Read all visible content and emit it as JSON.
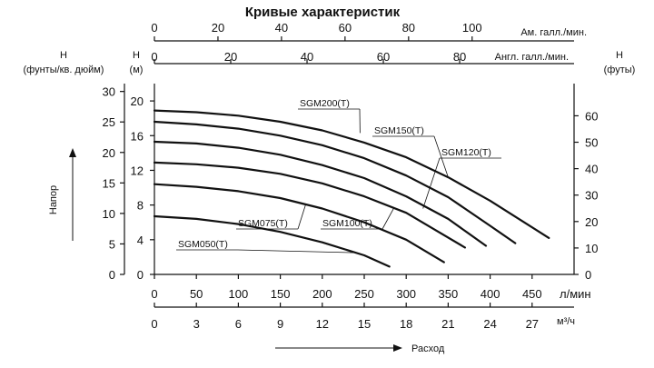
{
  "chart_data": {
    "type": "line",
    "title": "Кривые характеристик",
    "axes": {
      "x_main": {
        "label": "л/мин",
        "range": [
          0,
          500
        ],
        "ticks": [
          0,
          50,
          100,
          150,
          200,
          250,
          300,
          350,
          400,
          450
        ]
      },
      "x_m3h": {
        "label": "м³/ч",
        "range": [
          0,
          30
        ],
        "ticks": [
          0,
          3,
          6,
          9,
          12,
          15,
          18,
          21,
          24,
          27
        ]
      },
      "x_usgpm": {
        "label": "Ам. галл./мин.",
        "range": [
          0,
          132.1
        ],
        "ticks": [
          0,
          20,
          40,
          60,
          80,
          100
        ]
      },
      "x_ukgpm": {
        "label": "Англ. галл./мин.",
        "range": [
          0,
          110
        ],
        "ticks": [
          0,
          20,
          40,
          60,
          80
        ]
      },
      "y_m": {
        "label_top": "H",
        "label_unit": "(м)",
        "range": [
          0,
          22
        ],
        "ticks": [
          0,
          4,
          8,
          12,
          16,
          20
        ]
      },
      "y_psi": {
        "label_top": "H",
        "label_unit": "(фунты/кв. дюйм)",
        "range": [
          0,
          31.3
        ],
        "ticks": [
          0,
          5,
          10,
          15,
          20,
          25,
          30
        ]
      },
      "y_ft": {
        "label_top": "H",
        "label_unit": "(футы)",
        "range": [
          0,
          72.2
        ],
        "ticks": [
          0,
          10,
          20,
          30,
          40,
          50,
          60
        ]
      },
      "y_side_label": "Напор",
      "x_bottom_label": "Расход"
    },
    "series": [
      {
        "name": "SGM200(T)",
        "x": [
          0,
          50,
          100,
          150,
          200,
          250,
          300,
          350,
          400,
          470
        ],
        "y": [
          18.9,
          18.7,
          18.3,
          17.6,
          16.6,
          15.2,
          13.5,
          11.2,
          8.5,
          4.2
        ]
      },
      {
        "name": "SGM150(T)",
        "x": [
          0,
          50,
          100,
          150,
          200,
          250,
          300,
          350,
          400,
          430
        ],
        "y": [
          17.6,
          17.3,
          16.8,
          16.0,
          14.9,
          13.4,
          11.4,
          8.9,
          5.6,
          3.6
        ]
      },
      {
        "name": "SGM120(T)",
        "x": [
          0,
          50,
          100,
          150,
          200,
          250,
          300,
          350,
          395
        ],
        "y": [
          15.3,
          15.1,
          14.6,
          13.8,
          12.6,
          11.1,
          9.0,
          6.4,
          3.3
        ]
      },
      {
        "name": "SGM100(T)",
        "x": [
          0,
          50,
          100,
          150,
          200,
          250,
          300,
          370
        ],
        "y": [
          12.9,
          12.7,
          12.3,
          11.6,
          10.5,
          9.0,
          7.1,
          3.1
        ]
      },
      {
        "name": "SGM075(T)",
        "x": [
          0,
          50,
          100,
          150,
          200,
          250,
          300,
          345
        ],
        "y": [
          10.4,
          10.1,
          9.6,
          8.8,
          7.6,
          6.0,
          4.0,
          1.4
        ]
      },
      {
        "name": "SGM050(T)",
        "x": [
          0,
          50,
          100,
          150,
          200,
          250,
          280
        ],
        "y": [
          6.7,
          6.4,
          5.8,
          4.9,
          3.7,
          2.2,
          0.9
        ]
      }
    ]
  }
}
